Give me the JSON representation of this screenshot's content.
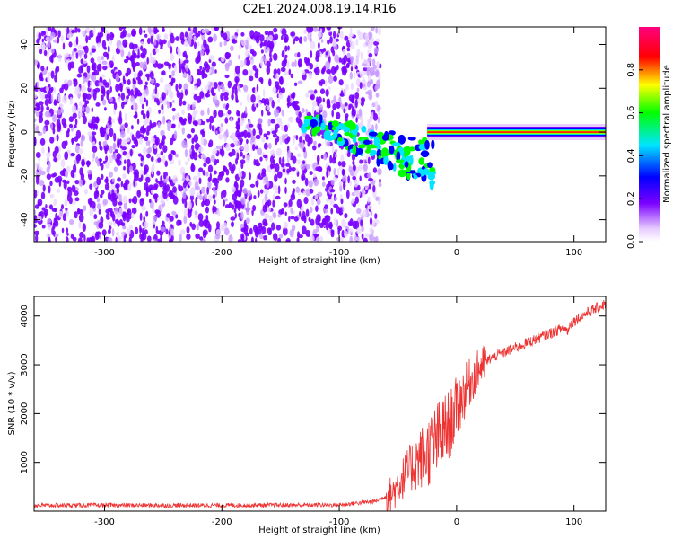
{
  "figure_title": "C2E1.2024.008.19.14.R16",
  "chart_data": [
    {
      "type": "heatmap",
      "title": "",
      "xlabel": "Height of straight line (km)",
      "ylabel": "Frequency (Hz)",
      "xlim": [
        -360,
        127
      ],
      "ylim": [
        -50,
        48
      ],
      "xticks": [
        -300,
        -200,
        -100,
        0,
        100
      ],
      "yticks": [
        -40,
        -20,
        0,
        20,
        40
      ],
      "colorbar": {
        "label": "Normalized spectral amplitude",
        "range": [
          0.0,
          1.0
        ],
        "ticks": [
          0.0,
          0.2,
          0.4,
          0.6,
          0.8
        ],
        "colormap": [
          "#ffffff",
          "#e7ccff",
          "#7a00ff",
          "#0000ff",
          "#00e5ff",
          "#00ff00",
          "#ffff00",
          "#ff0000",
          "#ff0080"
        ]
      },
      "regions": [
        {
          "description_key": "noise",
          "x_range": [
            -360,
            -75
          ],
          "freq_range": [
            -50,
            48
          ],
          "amplitude_range": [
            0.0,
            0.3
          ]
        },
        {
          "description_key": "transition",
          "x_range": [
            -130,
            -20
          ],
          "freq_center": [
            5,
            -15
          ],
          "amplitude_range": [
            0.2,
            0.6
          ]
        },
        {
          "description_key": "carrier",
          "x_range": [
            -25,
            127
          ],
          "freq_center": 0,
          "amplitude_range": [
            0.6,
            0.95
          ]
        }
      ],
      "grid": false
    },
    {
      "type": "line",
      "title": "",
      "xlabel": "Height of straight line (km)",
      "ylabel": "SNR (10 * v/v)",
      "xlim": [
        -360,
        127
      ],
      "ylim": [
        0,
        4400
      ],
      "xticks": [
        -300,
        -200,
        -100,
        0,
        100
      ],
      "yticks": [
        1000,
        2000,
        3000,
        4000
      ],
      "color": "#ee3333",
      "series": [
        {
          "x": [
            -360,
            -300,
            -200,
            -100,
            -70,
            -55,
            -45,
            -35,
            -25,
            -15,
            -8,
            0,
            10,
            20,
            30,
            50,
            70,
            90,
            95,
            97,
            100,
            110,
            127
          ],
          "values": [
            120,
            120,
            120,
            130,
            200,
            350,
            700,
            1000,
            1200,
            1500,
            1700,
            2100,
            2600,
            2950,
            3150,
            3350,
            3550,
            3750,
            3700,
            3850,
            3900,
            4050,
            4250
          ]
        }
      ],
      "grid": false
    }
  ]
}
